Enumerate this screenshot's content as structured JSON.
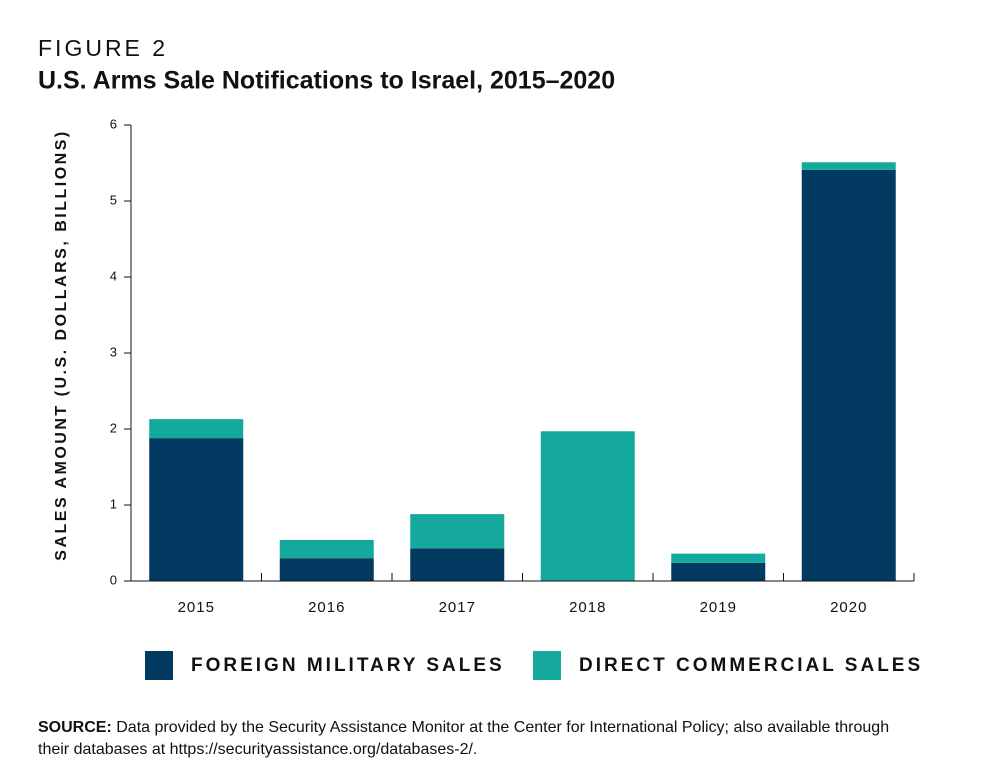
{
  "chart_data": {
    "type": "stacked_bar",
    "figure_label": "FIGURE 2",
    "title": "U.S. Arms Sale Notifications to Israel, 2015–2020",
    "y_label": "SALES AMOUNT (U.S. DOLLARS, BILLIONS)",
    "categories": [
      "2015",
      "2016",
      "2017",
      "2018",
      "2019",
      "2020"
    ],
    "series": [
      {
        "name": "FOREIGN MILITARY SALES",
        "color": "#033a62",
        "values": [
          1.88,
          0.3,
          0.43,
          0,
          0.24,
          5.41
        ]
      },
      {
        "name": "DIRECT COMMERCIAL SALES",
        "color": "#15a89d",
        "values": [
          0.25,
          0.24,
          0.45,
          1.97,
          0.12,
          0.1
        ]
      }
    ],
    "ylim": [
      0,
      6
    ],
    "yticks": [
      0,
      1,
      2,
      3,
      4,
      5,
      6
    ],
    "source_label": "SOURCE:",
    "source_line1": "Data provided by the Security Assistance Monitor at the Center for International Policy; also available through",
    "source_line2": "their databases at https://securityassistance.org/databases-2/."
  }
}
